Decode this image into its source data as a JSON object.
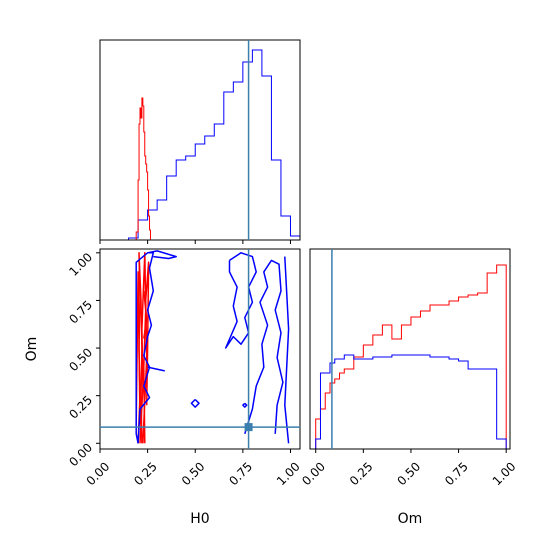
{
  "chart_data": {
    "type": "corner",
    "parameters": [
      "H0",
      "Om"
    ],
    "truth": {
      "H0": 0.78,
      "Om": 0.085
    },
    "series_colors": {
      "a": "#ff0000",
      "b": "#0000ff",
      "truth": "#3a7fad"
    },
    "panels": [
      {
        "id": "hist-H0",
        "type": "histogram",
        "xlim": [
          0,
          1.05
        ],
        "x_ticks": [
          "0.00",
          "0.25",
          "0.50",
          "0.75",
          "1.00"
        ],
        "x_tick_labels_shown": false,
        "series": [
          {
            "color": "#0000ff",
            "x_edges": [
              0.15,
              0.2,
              0.25,
              0.3,
              0.35,
              0.4,
              0.45,
              0.5,
              0.55,
              0.6,
              0.65,
              0.7,
              0.75,
              0.8,
              0.85,
              0.9,
              0.95,
              1.0,
              1.05
            ],
            "counts": [
              0.01,
              0.1,
              0.15,
              0.2,
              0.32,
              0.4,
              0.42,
              0.48,
              0.52,
              0.58,
              0.74,
              0.79,
              0.89,
              0.95,
              0.82,
              0.4,
              0.12,
              0.02
            ]
          },
          {
            "color": "#ff0000",
            "x_edges": [
              0.19,
              0.2,
              0.205,
              0.21,
              0.215,
              0.22,
              0.225,
              0.23,
              0.235,
              0.24,
              0.245,
              0.25,
              0.255,
              0.26,
              0.265
            ],
            "counts": [
              0.04,
              0.3,
              0.58,
              0.66,
              0.61,
              0.71,
              0.67,
              0.54,
              0.42,
              0.38,
              0.34,
              0.25,
              0.12,
              0.05
            ]
          }
        ]
      },
      {
        "id": "hist-Om",
        "type": "histogram",
        "xlim": [
          -0.03,
          1.02
        ],
        "x_ticks": [
          "0.00",
          "0.25",
          "0.50",
          "0.75",
          "1.00"
        ],
        "x_label": "Om",
        "series": [
          {
            "color": "#ff0000",
            "x_edges": [
              0.0,
              0.025,
              0.05,
              0.075,
              0.1,
              0.125,
              0.15,
              0.2,
              0.25,
              0.3,
              0.35,
              0.4,
              0.45,
              0.5,
              0.55,
              0.6,
              0.65,
              0.7,
              0.75,
              0.8,
              0.85,
              0.9,
              0.95,
              1.0
            ],
            "counts": [
              0.15,
              0.2,
              0.28,
              0.33,
              0.35,
              0.38,
              0.4,
              0.46,
              0.52,
              0.57,
              0.62,
              0.55,
              0.62,
              0.66,
              0.69,
              0.72,
              0.72,
              0.74,
              0.76,
              0.77,
              0.78,
              0.88,
              0.92
            ]
          },
          {
            "color": "#0000ff",
            "x_edges": [
              0.0,
              0.025,
              0.05,
              0.075,
              0.1,
              0.15,
              0.2,
              0.3,
              0.4,
              0.5,
              0.6,
              0.7,
              0.75,
              0.8,
              0.85,
              0.95,
              1.0
            ],
            "counts": [
              0.05,
              0.38,
              0.38,
              0.43,
              0.45,
              0.47,
              0.45,
              0.46,
              0.47,
              0.47,
              0.46,
              0.45,
              0.44,
              0.4,
              0.4,
              0.05
            ]
          }
        ]
      },
      {
        "id": "contour-H0-Om",
        "type": "contour",
        "xlim": [
          0,
          1.05
        ],
        "ylim": [
          -0.03,
          1.02
        ],
        "x_ticks": [
          "0.00",
          "0.25",
          "0.50",
          "0.75",
          "1.00"
        ],
        "y_ticks": [
          "0.00",
          "0.25",
          "0.50",
          "0.75",
          "1.00"
        ],
        "x_label": "H0",
        "y_label": "Om",
        "series": [
          {
            "color": "#ff0000",
            "contours": [
              [
                [
                  0.2,
                  0.0
                ],
                [
                  0.21,
                  0.25
                ],
                [
                  0.205,
                  0.5
                ],
                [
                  0.21,
                  0.75
                ],
                [
                  0.205,
                  1.0
                ],
                [
                  0.215,
                  0.75
                ],
                [
                  0.22,
                  0.5
                ],
                [
                  0.215,
                  0.25
                ],
                [
                  0.22,
                  0.0
                ]
              ],
              [
                [
                  0.21,
                  0.0
                ],
                [
                  0.225,
                  0.3
                ],
                [
                  0.22,
                  0.6
                ],
                [
                  0.235,
                  1.0
                ],
                [
                  0.24,
                  0.7
                ],
                [
                  0.23,
                  0.4
                ],
                [
                  0.235,
                  0.0
                ]
              ],
              [
                [
                  0.225,
                  0.0
                ],
                [
                  0.245,
                  0.45
                ],
                [
                  0.24,
                  0.75
                ],
                [
                  0.255,
                  0.95
                ],
                [
                  0.25,
                  0.5
                ],
                [
                  0.245,
                  0.2
                ]
              ],
              [
                [
                  0.23,
                  0.55
                ],
                [
                  0.245,
                  0.65
                ],
                [
                  0.23,
                  0.8
                ]
              ],
              [
                [
                  0.19,
                  0.1
                ],
                [
                  0.2,
                  0.9
                ],
                [
                  0.21,
                  0.1
                ]
              ]
            ]
          },
          {
            "color": "#0000ff",
            "contours": [
              [
                [
                  0.2,
                  0.0
                ],
                [
                  0.21,
                  0.18
                ],
                [
                  0.26,
                  0.24
                ],
                [
                  0.23,
                  0.3
                ],
                [
                  0.26,
                  0.4
                ],
                [
                  0.23,
                  0.46
                ],
                [
                  0.25,
                  0.56
                ],
                [
                  0.27,
                  0.62
                ],
                [
                  0.25,
                  0.7
                ],
                [
                  0.28,
                  0.8
                ],
                [
                  0.26,
                  0.92
                ],
                [
                  0.28,
                  1.0
                ],
                [
                  0.25,
                  1.0
                ],
                [
                  0.19,
                  0.95
                ],
                [
                  0.19,
                  0.05
                ],
                [
                  0.2,
                  0.0
                ]
              ],
              [
                [
                  0.25,
                  1.0
                ],
                [
                  0.3,
                  1.01
                ],
                [
                  0.4,
                  0.98
                ],
                [
                  0.36,
                  0.97
                ],
                [
                  0.28,
                  0.98
                ]
              ],
              [
                [
                  0.34,
                  0.38
                ],
                [
                  0.25,
                  0.4
                ]
              ],
              [
                [
                  0.76,
                  0.05
                ],
                [
                  0.8,
                  0.18
                ],
                [
                  0.82,
                  0.3
                ],
                [
                  0.86,
                  0.4
                ],
                [
                  0.85,
                  0.52
                ],
                [
                  0.88,
                  0.62
                ],
                [
                  0.84,
                  0.74
                ],
                [
                  0.88,
                  0.82
                ],
                [
                  0.86,
                  0.9
                ],
                [
                  0.9,
                  0.96
                ],
                [
                  0.94,
                  0.94
                ],
                [
                  0.95,
                  0.8
                ],
                [
                  0.92,
                  0.7
                ],
                [
                  0.95,
                  0.58
                ],
                [
                  0.93,
                  0.45
                ],
                [
                  0.96,
                  0.32
                ],
                [
                  0.93,
                  0.2
                ],
                [
                  0.92,
                  0.05
                ]
              ],
              [
                [
                  0.68,
                  0.96
                ],
                [
                  0.74,
                  1.0
                ],
                [
                  0.8,
                  0.98
                ],
                [
                  0.82,
                  0.9
                ],
                [
                  0.78,
                  0.82
                ],
                [
                  0.8,
                  0.74
                ],
                [
                  0.76,
                  0.66
                ],
                [
                  0.78,
                  0.58
                ],
                [
                  0.74,
                  0.52
                ],
                [
                  0.7,
                  0.56
                ],
                [
                  0.66,
                  0.5
                ],
                [
                  0.72,
                  0.64
                ],
                [
                  0.7,
                  0.72
                ],
                [
                  0.72,
                  0.82
                ],
                [
                  0.68,
                  0.9
                ],
                [
                  0.68,
                  0.96
                ]
              ],
              [
                [
                  0.97,
                  0.98
                ],
                [
                  0.99,
                  0.6
                ],
                [
                  0.97,
                  0.2
                ],
                [
                  0.99,
                  0.0
                ]
              ],
              [
                [
                  0.5,
                  0.23
                ],
                [
                  0.52,
                  0.21
                ],
                [
                  0.5,
                  0.19
                ],
                [
                  0.48,
                  0.21
                ],
                [
                  0.5,
                  0.23
                ]
              ],
              [
                [
                  0.76,
                  0.21
                ],
                [
                  0.77,
                  0.2
                ],
                [
                  0.76,
                  0.19
                ],
                [
                  0.75,
                  0.2
                ],
                [
                  0.76,
                  0.21
                ]
              ]
            ]
          }
        ],
        "truth_point": [
          0.78,
          0.085
        ]
      }
    ]
  }
}
